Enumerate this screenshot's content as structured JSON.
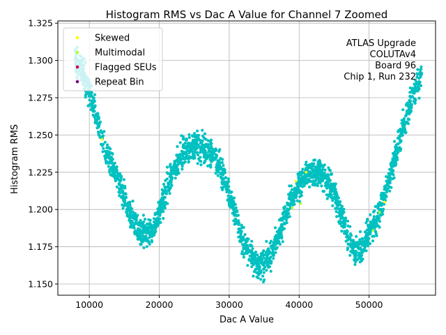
{
  "chart_data": {
    "type": "scatter",
    "title": "Histogram RMS vs Dac A Value for Channel 7 Zoomed",
    "xlabel": "Dac A Value",
    "ylabel": "Histogram RMS",
    "xlim": [
      5500,
      59500
    ],
    "ylim": [
      1.1425,
      1.3265
    ],
    "xticks": [
      10000,
      20000,
      30000,
      40000,
      50000
    ],
    "xtick_labels": [
      "10000",
      "20000",
      "30000",
      "40000",
      "50000"
    ],
    "yticks": [
      1.15,
      1.175,
      1.2,
      1.225,
      1.25,
      1.275,
      1.3,
      1.325
    ],
    "ytick_labels": [
      "1.150",
      "1.175",
      "1.200",
      "1.225",
      "1.250",
      "1.275",
      "1.300",
      "1.325"
    ],
    "grid": true,
    "legend_position": "top-left",
    "annotation_lines": [
      "ATLAS Upgrade",
      "COLUTAv4",
      "Board 96",
      "Chip 1, Run 232"
    ],
    "series": [
      {
        "name": "Histogram RMS",
        "color": "#00c0c0",
        "in_legend": false,
        "x_range": [
          8000,
          57500
        ],
        "trend": [
          [
            8000,
            1.3
          ],
          [
            9000,
            1.292
          ],
          [
            10000,
            1.28
          ],
          [
            11000,
            1.262
          ],
          [
            12000,
            1.245
          ],
          [
            13000,
            1.232
          ],
          [
            14000,
            1.222
          ],
          [
            15000,
            1.208
          ],
          [
            16000,
            1.195
          ],
          [
            17000,
            1.186
          ],
          [
            18000,
            1.183
          ],
          [
            19000,
            1.186
          ],
          [
            20000,
            1.198
          ],
          [
            21000,
            1.212
          ],
          [
            22000,
            1.226
          ],
          [
            23000,
            1.235
          ],
          [
            24000,
            1.24
          ],
          [
            25000,
            1.242
          ],
          [
            26000,
            1.242
          ],
          [
            27000,
            1.24
          ],
          [
            28000,
            1.234
          ],
          [
            29000,
            1.224
          ],
          [
            30000,
            1.21
          ],
          [
            31000,
            1.194
          ],
          [
            32000,
            1.18
          ],
          [
            33000,
            1.17
          ],
          [
            34000,
            1.163
          ],
          [
            35000,
            1.164
          ],
          [
            36000,
            1.17
          ],
          [
            37000,
            1.182
          ],
          [
            38000,
            1.196
          ],
          [
            39000,
            1.208
          ],
          [
            40000,
            1.217
          ],
          [
            41000,
            1.222
          ],
          [
            42000,
            1.225
          ],
          [
            43000,
            1.224
          ],
          [
            44000,
            1.22
          ],
          [
            45000,
            1.212
          ],
          [
            46000,
            1.198
          ],
          [
            47000,
            1.182
          ],
          [
            48000,
            1.17
          ],
          [
            49000,
            1.175
          ],
          [
            50000,
            1.185
          ],
          [
            51000,
            1.192
          ],
          [
            52000,
            1.205
          ],
          [
            53000,
            1.222
          ],
          [
            54000,
            1.24
          ],
          [
            55000,
            1.258
          ],
          [
            56000,
            1.272
          ],
          [
            57000,
            1.285
          ],
          [
            57500,
            1.29
          ]
        ]
      },
      {
        "name": "Skewed",
        "color": "#ffff00",
        "in_legend": true,
        "points": [
          [
            11800,
            1.247
          ],
          [
            39500,
            1.219
          ],
          [
            41000,
            1.225
          ],
          [
            52200,
            1.205
          ]
        ]
      },
      {
        "name": "Multimodal",
        "color": "#adff2f",
        "in_legend": true,
        "points": [
          [
            39000,
            1.201
          ],
          [
            40200,
            1.204
          ],
          [
            50600,
            1.186
          ],
          [
            51500,
            1.198
          ]
        ]
      },
      {
        "name": "Flagged SEUs",
        "color": "#c8004b",
        "in_legend": true,
        "points": []
      },
      {
        "name": "Repeat Bin",
        "color": "#800080",
        "in_legend": true,
        "points": []
      }
    ]
  }
}
